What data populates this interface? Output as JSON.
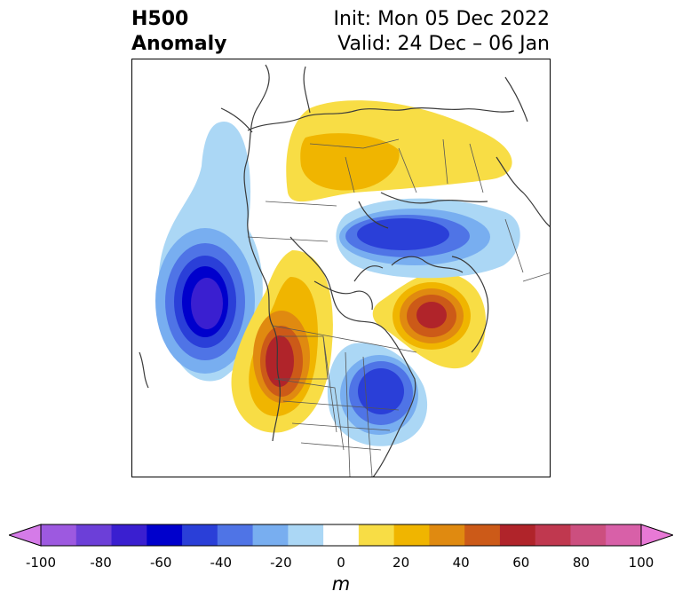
{
  "header": {
    "field": "H500",
    "field_type": "Anomaly",
    "init": "Init: Mon 05 Dec 2022",
    "valid": "Valid: 24 Dec – 06 Jan"
  },
  "colorbar": {
    "unit": "m",
    "ticks": [
      "-100",
      "-80",
      "-60",
      "-40",
      "-20",
      "0",
      "20",
      "40",
      "60",
      "80",
      "100"
    ],
    "levels": [
      -100,
      -90,
      -80,
      -70,
      -60,
      -50,
      -40,
      -30,
      -20,
      -10,
      10,
      20,
      30,
      40,
      50,
      60,
      70,
      80,
      90,
      100
    ],
    "colors": [
      "#d57be8",
      "#9d59e0",
      "#6c3fd8",
      "#3a1fd0",
      "#0000cc",
      "#2a3fd8",
      "#4f74e6",
      "#78aef0",
      "#abd7f5",
      "#ffffff",
      "#f8dd45",
      "#f0b500",
      "#e08a10",
      "#cc5a18",
      "#b0242a",
      "#c0384f",
      "#cc4f7f",
      "#d860a8",
      "#e879d6"
    ],
    "extend": "both"
  },
  "map": {
    "projection": "polar-stereographic (North America / Arctic)",
    "features": [
      "coastlines",
      "country borders",
      "US states",
      "Canadian provinces"
    ],
    "anomaly_centers": [
      {
        "region": "Gulf of Alaska / NE Pacific",
        "sign": "negative",
        "approx_m": -80
      },
      {
        "region": "US Pacific Northwest / Western Canada",
        "sign": "positive",
        "approx_m": 60
      },
      {
        "region": "Greenland / Davis Strait",
        "sign": "positive",
        "approx_m": 60
      },
      {
        "region": "Eastern US / Great Lakes",
        "sign": "negative",
        "approx_m": -50
      },
      {
        "region": "Northern Siberia / Kara Sea",
        "sign": "negative",
        "approx_m": -50
      },
      {
        "region": "Northern Europe / Scandinavia / Western Russia",
        "sign": "positive",
        "approx_m": 30
      }
    ]
  }
}
